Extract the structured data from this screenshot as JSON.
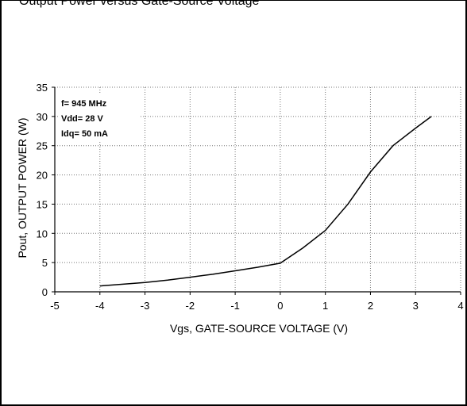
{
  "caption": "Output Power versus Gate-Source Voltage",
  "chart_data": {
    "type": "line",
    "title": "",
    "xlabel": "Vgs, GATE-SOURCE VOLTAGE (V)",
    "ylabel": "Pout, OUTPUT POWER (W)",
    "xlim": [
      -5,
      4
    ],
    "ylim": [
      0,
      35
    ],
    "xticks": [
      -5,
      -4,
      -3,
      -2,
      -1,
      0,
      1,
      2,
      3,
      4
    ],
    "yticks": [
      0,
      5,
      10,
      15,
      20,
      25,
      30,
      35
    ],
    "grid": true,
    "annotations": [
      "f= 945 MHz",
      "Vdd= 28 V",
      "Idq= 50 mA"
    ],
    "series": [
      {
        "x": [
          -4,
          -3,
          -2.5,
          -2,
          -1.5,
          -1,
          -0.5,
          0,
          0.5,
          1,
          1.5,
          2,
          2.5,
          3,
          3.35
        ],
        "y": [
          1,
          1.6,
          2,
          2.5,
          3,
          3.6,
          4.2,
          4.9,
          7.5,
          10.5,
          15,
          20.5,
          25,
          28,
          30
        ]
      }
    ]
  }
}
